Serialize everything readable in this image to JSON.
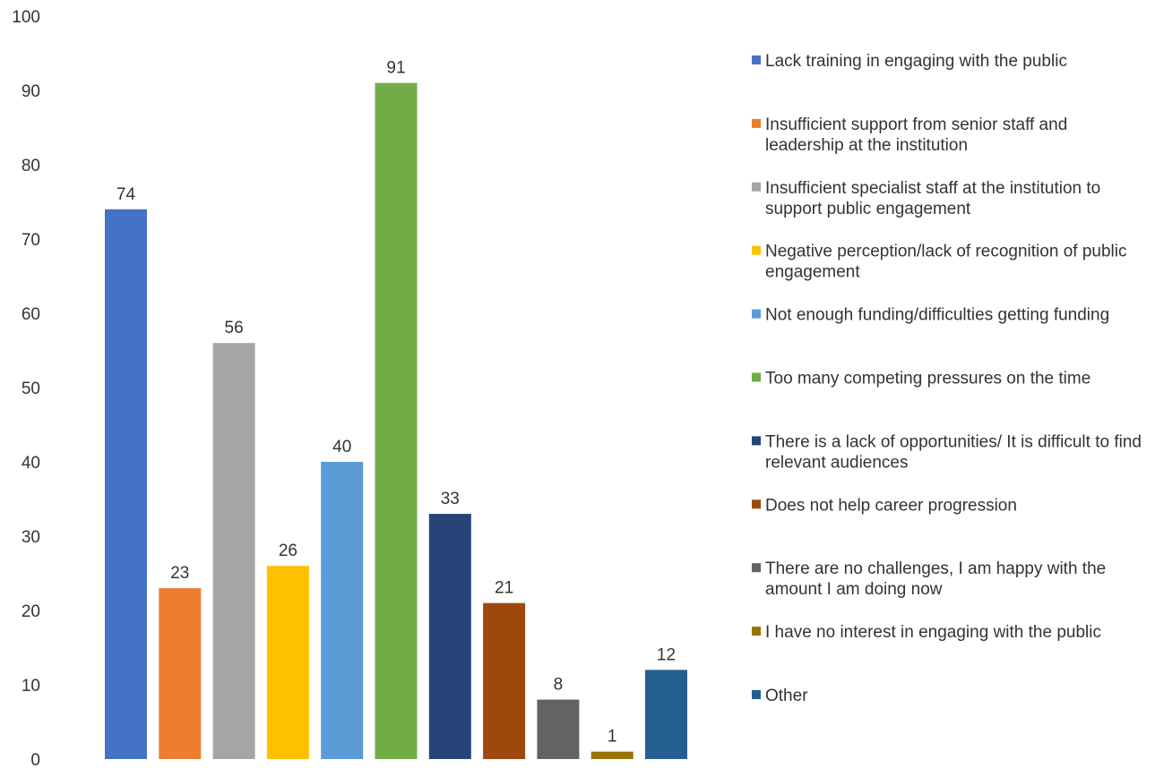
{
  "chart_data": {
    "type": "bar",
    "ylim": [
      0,
      100
    ],
    "yticks": [
      0,
      10,
      20,
      30,
      40,
      50,
      60,
      70,
      80,
      90,
      100
    ],
    "grid": false,
    "legend_position": "right",
    "data_labels": true,
    "series": [
      {
        "name": "Lack training in engaging with the public",
        "value": 74,
        "color": "#4472C4"
      },
      {
        "name": "Insufficient support from senior staff and leadership at the institution",
        "value": 23,
        "color": "#ED7D31"
      },
      {
        "name": "Insufficient specialist staff at the institution to support public engagement",
        "value": 56,
        "color": "#A5A5A5"
      },
      {
        "name": "Negative perception/lack of recognition of public engagement",
        "value": 26,
        "color": "#FFC000"
      },
      {
        "name": "Not enough funding/difficulties getting funding",
        "value": 40,
        "color": "#5B9BD5"
      },
      {
        "name": "Too many competing pressures on the time",
        "value": 91,
        "color": "#70AD47"
      },
      {
        "name": "There is a lack of opportunities/ It is difficult to find relevant audiences",
        "value": 33,
        "color": "#264478"
      },
      {
        "name": "Does not help career progression",
        "value": 21,
        "color": "#9E480E"
      },
      {
        "name": "There are no challenges, I am happy with the amount I am doing now",
        "value": 8,
        "color": "#636363"
      },
      {
        "name": "I have no interest in engaging with the public",
        "value": 1,
        "color": "#997300"
      },
      {
        "name": "Other",
        "value": 12,
        "color": "#255E91"
      }
    ]
  }
}
